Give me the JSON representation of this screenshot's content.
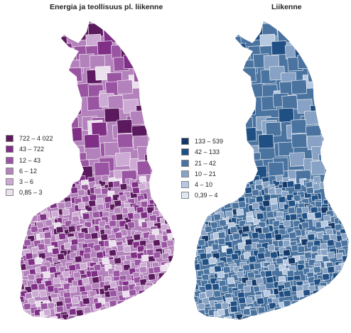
{
  "maps": [
    {
      "title": "Energia ja teollisuus pl. liikenne",
      "legend": [
        {
          "label": "722 – 4 022",
          "color": "#5c1a5e"
        },
        {
          "label": "43 – 722",
          "color": "#7f2f86"
        },
        {
          "label": "12 – 43",
          "color": "#9a55a2"
        },
        {
          "label": "6 – 12",
          "color": "#b381bb"
        },
        {
          "label": "3 – 6",
          "color": "#cdaad3"
        },
        {
          "label": "0,85 – 3",
          "color": "#ebe1ee"
        }
      ]
    },
    {
      "title": "Liikenne",
      "legend": [
        {
          "label": "133 – 539",
          "color": "#143868"
        },
        {
          "label": "42 – 133",
          "color": "#1f4f83"
        },
        {
          "label": "21 – 42",
          "color": "#4a73a0"
        },
        {
          "label": "10 – 21",
          "color": "#87a2c4"
        },
        {
          "label": "4 – 10",
          "color": "#b7c9e1"
        },
        {
          "label": "0,39 – 4",
          "color": "#dfe7f2"
        }
      ]
    }
  ]
}
